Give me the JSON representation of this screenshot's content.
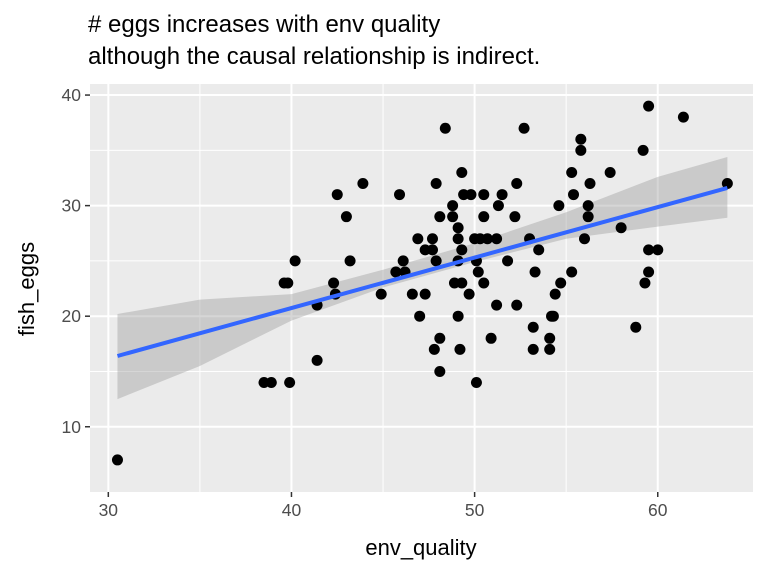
{
  "chart_data": {
    "type": "scatter",
    "title": [
      "# eggs increases with env quality",
      "although the causal relationship is indirect."
    ],
    "xlabel": "env_quality",
    "ylabel": "fish_eggs",
    "xlim": [
      29,
      65.2
    ],
    "ylim": [
      4.1,
      41
    ],
    "xticks": [
      30,
      40,
      50,
      60
    ],
    "yticks": [
      10,
      20,
      30,
      40
    ],
    "grid": true,
    "colors": {
      "panel": "#ebebeb",
      "points": "#000000",
      "line": "#3366ff",
      "ribbon": "#999999"
    },
    "points": [
      [
        30.5,
        7
      ],
      [
        38.5,
        14
      ],
      [
        38.9,
        14
      ],
      [
        39.9,
        14
      ],
      [
        39.6,
        23
      ],
      [
        39.8,
        23
      ],
      [
        40.2,
        25
      ],
      [
        41.4,
        16
      ],
      [
        41.4,
        21
      ],
      [
        42.3,
        23
      ],
      [
        42.4,
        22
      ],
      [
        42.5,
        31
      ],
      [
        43,
        29
      ],
      [
        43.2,
        25
      ],
      [
        43.9,
        32
      ],
      [
        44.9,
        22
      ],
      [
        45.7,
        24
      ],
      [
        45.9,
        31
      ],
      [
        46.1,
        25
      ],
      [
        46.2,
        24
      ],
      [
        46.6,
        22
      ],
      [
        47,
        20
      ],
      [
        46.9,
        27
      ],
      [
        47.3,
        22
      ],
      [
        47.3,
        26
      ],
      [
        47.7,
        27
      ],
      [
        47.7,
        26
      ],
      [
        47.8,
        17
      ],
      [
        47.9,
        32
      ],
      [
        47.9,
        25
      ],
      [
        48.1,
        29
      ],
      [
        48.1,
        18
      ],
      [
        48.1,
        15
      ],
      [
        48.4,
        37
      ],
      [
        48.8,
        30
      ],
      [
        48.8,
        29
      ],
      [
        48.9,
        23
      ],
      [
        49.1,
        27
      ],
      [
        49.1,
        28
      ],
      [
        49.1,
        25
      ],
      [
        49.1,
        20
      ],
      [
        49.2,
        17
      ],
      [
        49.3,
        33
      ],
      [
        49.3,
        23
      ],
      [
        49.3,
        26
      ],
      [
        49.4,
        31
      ],
      [
        49.7,
        22
      ],
      [
        49.8,
        31
      ],
      [
        50,
        27
      ],
      [
        50.1,
        25
      ],
      [
        50.2,
        24
      ],
      [
        50.1,
        14
      ],
      [
        50.3,
        27
      ],
      [
        50.5,
        29
      ],
      [
        50.5,
        23
      ],
      [
        50.5,
        31
      ],
      [
        50.7,
        27
      ],
      [
        50.9,
        18
      ],
      [
        51.2,
        27
      ],
      [
        51.2,
        21
      ],
      [
        51.3,
        30
      ],
      [
        51.5,
        31
      ],
      [
        51.8,
        25
      ],
      [
        52.2,
        29
      ],
      [
        52.3,
        21
      ],
      [
        52.3,
        32
      ],
      [
        52.7,
        37
      ],
      [
        53,
        27
      ],
      [
        53.2,
        19
      ],
      [
        53.2,
        17
      ],
      [
        53.3,
        24
      ],
      [
        53.5,
        26
      ],
      [
        54.1,
        17
      ],
      [
        54.1,
        18
      ],
      [
        54.2,
        20
      ],
      [
        54.3,
        20
      ],
      [
        54.4,
        22
      ],
      [
        54.6,
        30
      ],
      [
        54.7,
        23
      ],
      [
        55.3,
        24
      ],
      [
        55.3,
        33
      ],
      [
        55.4,
        31
      ],
      [
        55.8,
        36
      ],
      [
        55.8,
        35
      ],
      [
        56.3,
        32
      ],
      [
        56.2,
        30
      ],
      [
        56.2,
        29
      ],
      [
        56,
        27
      ],
      [
        57.4,
        33
      ],
      [
        58,
        28
      ],
      [
        58.8,
        19
      ],
      [
        59.2,
        35
      ],
      [
        59.3,
        23
      ],
      [
        59.5,
        24
      ],
      [
        59.5,
        26
      ],
      [
        60,
        26
      ],
      [
        59.5,
        39
      ],
      [
        61.4,
        38
      ],
      [
        63.8,
        32
      ]
    ],
    "fit": {
      "method": "lm",
      "line": [
        [
          30.5,
          16.4
        ],
        [
          63.8,
          31.6
        ]
      ],
      "ribbon": [
        [
          30.5,
          12.5,
          20.2
        ],
        [
          35,
          15.5,
          21.5
        ],
        [
          40,
          19.6,
          22.0
        ],
        [
          45,
          22.6,
          24.2
        ],
        [
          50,
          24.9,
          26.6
        ],
        [
          55,
          27.0,
          29.4
        ],
        [
          60,
          28.1,
          32.6
        ],
        [
          63.8,
          28.9,
          34.4
        ]
      ]
    }
  }
}
